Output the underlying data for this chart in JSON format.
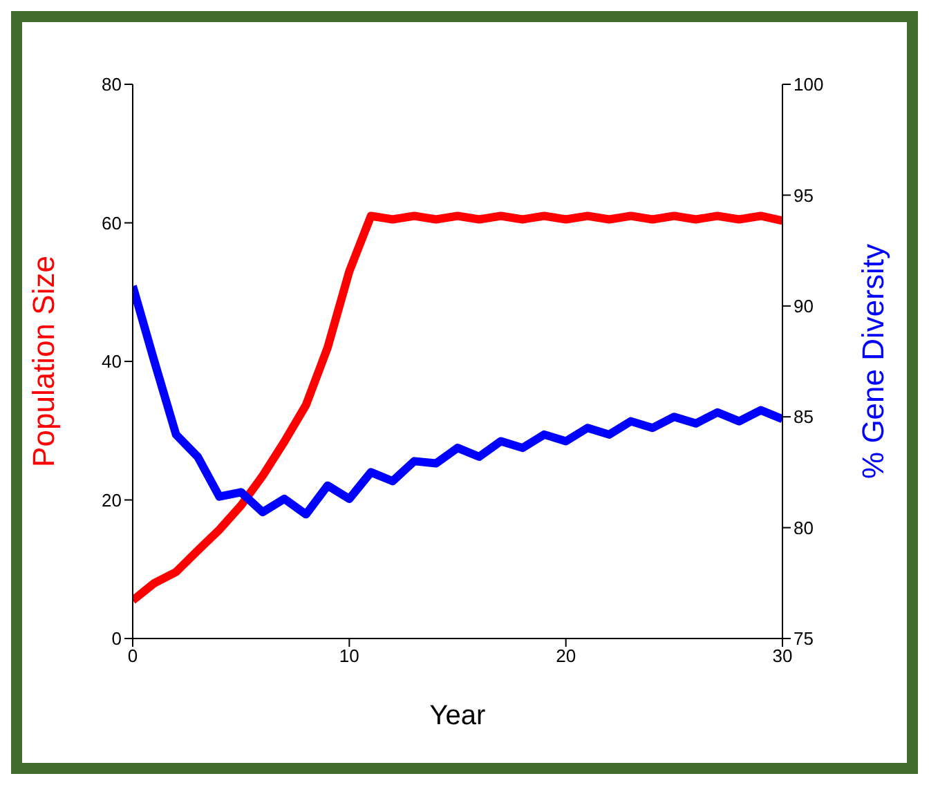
{
  "chart_data": {
    "type": "line",
    "xlabel": "Year",
    "ylabel": "Population Size",
    "y2label": "% Gene Diversity",
    "x": [
      0,
      1,
      2,
      3,
      4,
      5,
      6,
      7,
      8,
      9,
      10,
      11,
      12,
      13,
      14,
      15,
      16,
      17,
      18,
      19,
      20,
      21,
      22,
      23,
      24,
      25,
      26,
      27,
      28,
      29,
      30
    ],
    "series": [
      {
        "color": "#ff0000",
        "values": [
          5.5,
          8,
          9.6,
          12.7,
          15.7,
          19.2,
          23.5,
          28.4,
          33.7,
          42,
          53,
          61,
          60.5,
          61,
          60.5,
          61,
          60.5,
          61,
          60.5,
          61,
          60.5,
          61,
          60.5,
          61,
          60.5,
          61,
          60.5,
          61,
          60.5,
          61,
          60.3
        ]
      },
      {
        "color": "#0000ff",
        "axis": "y2",
        "values": [
          90.9,
          87.5,
          84.2,
          83.2,
          81.4,
          81.6,
          80.7,
          81.3,
          80.6,
          81.9,
          81.3,
          82.5,
          82.1,
          83,
          82.9,
          83.6,
          83.2,
          83.9,
          83.6,
          84.2,
          83.9,
          84.5,
          84.2,
          84.8,
          84.5,
          85,
          84.7,
          85.2,
          84.8,
          85.3,
          84.9
        ]
      }
    ],
    "xlim": [
      0,
      30
    ],
    "xticks": [
      0,
      10,
      20,
      30
    ],
    "ylim": [
      0,
      80
    ],
    "yticks": [
      0,
      20,
      40,
      60,
      80
    ],
    "y2lim": [
      75,
      100
    ],
    "y2ticks": [
      75,
      80,
      85,
      90,
      95,
      100
    ],
    "grid": false,
    "legend": false,
    "marker": "none",
    "line_style": "solid"
  }
}
